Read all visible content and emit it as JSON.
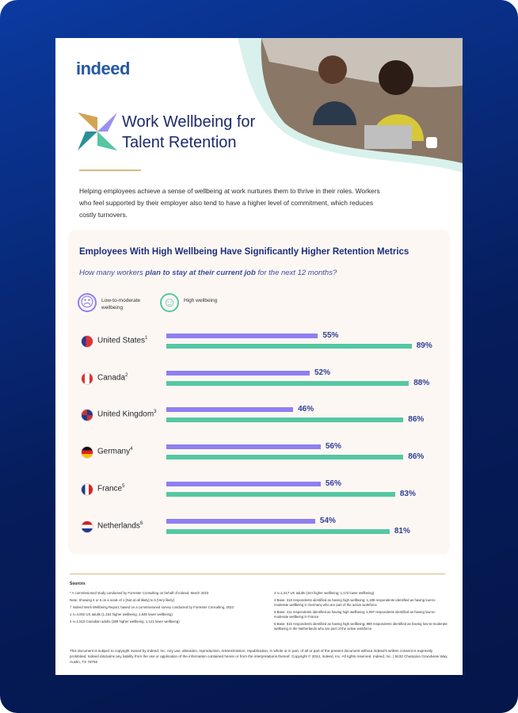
{
  "header": {
    "logo": "indeed",
    "title_line1": "Work Wellbeing for",
    "title_line2": "Talent Retention"
  },
  "intro": "Helping employees achieve a sense of wellbeing at work nurtures them to thrive in their roles. Workers who feel supported by their employer also tend to have a higher level of commitment, which reduces costly turnovers.",
  "chart": {
    "title": "Employees With High Wellbeing Have Significantly Higher Retention Metrics",
    "subtitle_start": "How many workers ",
    "subtitle_bold": "plan to stay at their current job",
    "subtitle_end": " for the next 12 months?",
    "legend": [
      {
        "name": "Low-to-moderate wellbeing",
        "color": "#8f7ff0"
      },
      {
        "name": "High wellbeing",
        "color": "#55c7a3"
      }
    ],
    "countries": [
      "United States",
      "Canada",
      "United Kingdom",
      "Germany",
      "France",
      "Netherlands"
    ],
    "footnote_marks": [
      "1",
      "2",
      "3",
      "4",
      "5",
      "6"
    ],
    "low_values": [
      55,
      52,
      46,
      56,
      56,
      54
    ],
    "low_labels": [
      "55%",
      "52%",
      "46%",
      "56%",
      "56%",
      "54%"
    ],
    "high_values": [
      89,
      88,
      86,
      86,
      83,
      81
    ],
    "high_labels": [
      "89%",
      "88%",
      "86%",
      "86%",
      "83%",
      "81%"
    ]
  },
  "sources": {
    "heading": "Sources",
    "left": [
      "* A commissioned study conducted by Forrester Consulting on behalf of Indeed, March 2023",
      "Note: Showing 4 or 5 on a scale of 1 [Not at all likely] to 5 [Very likely]",
      "† Indeed Work Wellbeing Report, based on a commissioned survey conducted by Forrester Consulting, 2023",
      "1 n=4,002 US adults (1,154 higher wellbeing; 2,848 lower wellbeing)",
      "2 n=1,510 Canadian adults (389 higher wellbeing; 1,121 lower wellbeing)"
    ],
    "right": [
      "3 n=1,517 UK adults (344 higher wellbeing; 1,173 lower wellbeing)",
      "4 Base: 318 respondents identified as having high wellbeing; 1,188 respondents identified as having low-to-moderate wellbeing in Germany who are part of the active workforce",
      "5 Base: 411 respondents identified as having high wellbeing; 1,097 respondents identified as having low-to-moderate wellbeing in France",
      "6 Base: 515 respondents identified as having high wellbeing; 988 respondents identified as having low-to-moderate wellbeing in the Netherlands who are part of the active workforce"
    ]
  },
  "footer": "This document is subject to copyright owned by Indeed, Inc. Any use, alteration, reproduction, retransmission, republication, in whole or in part, of all or part of the present document without Indeed's written consent is expressly prohibited. Indeed disclaims any liability from the use or application of the information contained herein or from the interpretations thereof. Copyright © 2024, Indeed, Inc. All rights reserved. Indeed, Inc. | 6433 Champion Grandview Way, Austin, TX 78750"
}
